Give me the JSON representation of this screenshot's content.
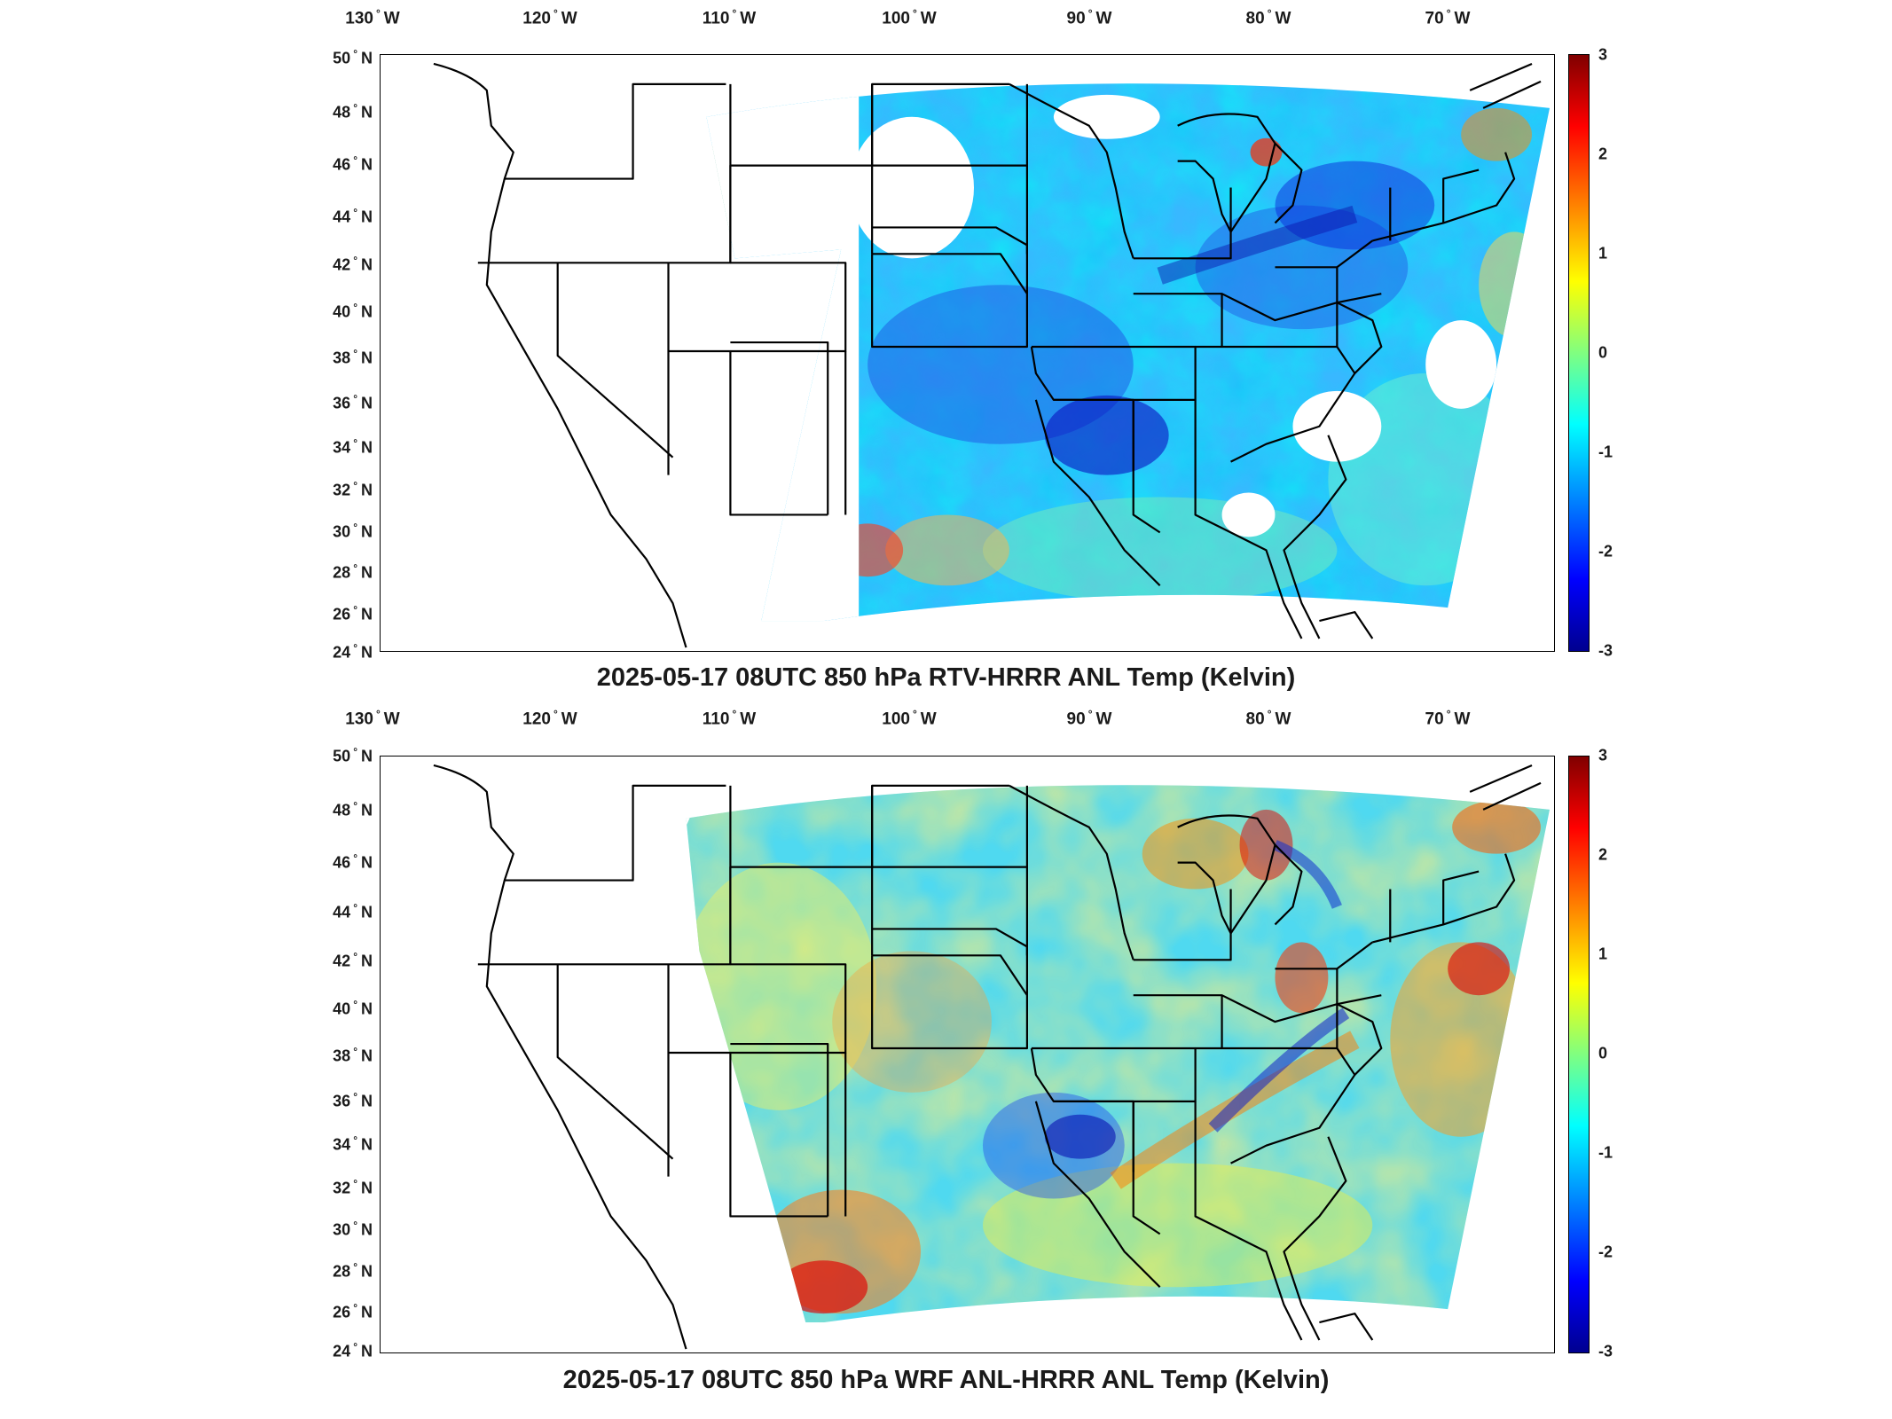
{
  "panels": [
    {
      "caption": "2025-05-17 08UTC 850 hPa RTV-HRRR ANL Temp (Kelvin)",
      "field_description_colors": "RTV-HRRR difference, dominated by blue/cyan with scattered red",
      "colorbar_ticks": [
        "3",
        "2",
        "1",
        "0",
        "-1",
        "-2",
        "-3"
      ]
    },
    {
      "caption": "2025-05-17 08UTC 850 hPa WRF ANL-HRRR ANL Temp (Kelvin)",
      "field_description_colors": "WRF-HRRR difference, mixed yellow/cyan with red patches",
      "colorbar_ticks": [
        "3",
        "2",
        "1",
        "0",
        "-1",
        "-2",
        "-3"
      ]
    }
  ],
  "lon_labels": [
    "130",
    "120",
    "110",
    "100",
    "90",
    "80",
    "70"
  ],
  "lon_suffix": "W",
  "lat_labels": [
    "50",
    "48",
    "46",
    "44",
    "42",
    "40",
    "38",
    "36",
    "34",
    "32",
    "30",
    "28",
    "26",
    "24"
  ],
  "lat_suffix": "N",
  "colormap": [
    "#800000",
    "#ff0000",
    "#ff8000",
    "#ffff00",
    "#80ff80",
    "#00ffff",
    "#0080ff",
    "#0000ff",
    "#00008f"
  ],
  "colorbar_range": [
    -3,
    3
  ]
}
